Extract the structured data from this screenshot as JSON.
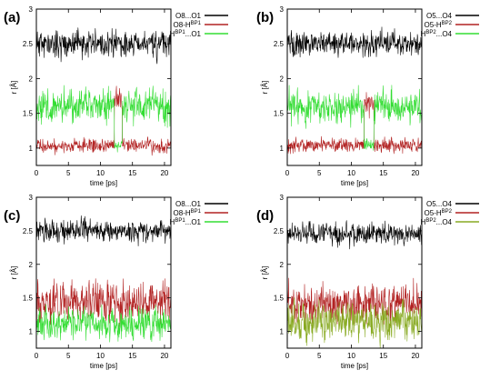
{
  "chart_data": [
    {
      "type": "line",
      "panel_label": "(a)",
      "xlabel": "time [ps]",
      "ylabel": "r [Å]",
      "xlim": [
        0,
        21
      ],
      "ylim": [
        0.75,
        3
      ],
      "xticks": [
        "0",
        "5",
        "10",
        "15",
        "20"
      ],
      "yticks": [
        "1",
        "1.5",
        "2",
        "2.5",
        "3"
      ],
      "legend_position": "top-right",
      "show_xlabel": true,
      "series": [
        {
          "name": "O8...O1",
          "color": "#000000",
          "mean": 2.5,
          "spread": 0.12,
          "seed": 11,
          "labels": {
            "main": "O8...O1",
            "sup": "",
            "tail": ""
          }
        },
        {
          "name": "O8-H^BP1",
          "color": "#b22222",
          "mean": 1.03,
          "spread": 0.06,
          "seed": 12,
          "labels": {
            "main": "O8-H",
            "sup": "BP1",
            "tail": ""
          },
          "events": [
            {
              "from": 12.2,
              "to": 13.4,
              "mean": 1.65,
              "spread": 0.12
            }
          ]
        },
        {
          "name": "H^BP1...O1",
          "color": "#33dd33",
          "mean": 1.6,
          "spread": 0.15,
          "seed": 13,
          "labels": {
            "main": "H",
            "sup": "BP1",
            "tail": "...O1"
          },
          "events": [
            {
              "from": 12.2,
              "to": 13.4,
              "mean": 1.03,
              "spread": 0.06
            }
          ]
        }
      ]
    },
    {
      "type": "line",
      "panel_label": "(b)",
      "xlabel": "time [ps]",
      "ylabel": "r [Å]",
      "xlim": [
        0,
        21
      ],
      "ylim": [
        0.75,
        3
      ],
      "xticks": [
        "0",
        "5",
        "10",
        "15",
        "20"
      ],
      "yticks": [
        "1",
        "1.5",
        "2",
        "2.5",
        "3"
      ],
      "legend_position": "top-right",
      "show_xlabel": true,
      "series": [
        {
          "name": "O5...O4",
          "color": "#000000",
          "mean": 2.5,
          "spread": 0.1,
          "seed": 21,
          "labels": {
            "main": "O5...O4",
            "sup": "",
            "tail": ""
          }
        },
        {
          "name": "O5-H^BP2",
          "color": "#b22222",
          "mean": 1.04,
          "spread": 0.06,
          "seed": 22,
          "labels": {
            "main": "O5-H",
            "sup": "BP2",
            "tail": ""
          },
          "events": [
            {
              "from": 12.0,
              "to": 13.5,
              "mean": 1.65,
              "spread": 0.12
            }
          ]
        },
        {
          "name": "H^BP2...O4",
          "color": "#33dd33",
          "mean": 1.6,
          "spread": 0.15,
          "seed": 23,
          "labels": {
            "main": "H",
            "sup": "BP2",
            "tail": "...O4"
          },
          "events": [
            {
              "from": 12.0,
              "to": 13.5,
              "mean": 1.04,
              "spread": 0.06
            }
          ]
        }
      ]
    },
    {
      "type": "line",
      "panel_label": "(c)",
      "xlabel": "time [ps]",
      "ylabel": "r [Å]",
      "xlim": [
        0,
        21
      ],
      "ylim": [
        0.75,
        3
      ],
      "xticks": [
        "0",
        "5",
        "10",
        "15",
        "20"
      ],
      "yticks": [
        "1",
        "1.5",
        "2",
        "2.5",
        "3"
      ],
      "legend_position": "top-right",
      "show_xlabel": true,
      "series": [
        {
          "name": "O8...O1",
          "color": "#000000",
          "mean": 2.5,
          "spread": 0.1,
          "seed": 31,
          "labels": {
            "main": "O8...O1",
            "sup": "",
            "tail": ""
          }
        },
        {
          "name": "O8-H^BP1",
          "color": "#b22222",
          "mean": 1.45,
          "spread": 0.18,
          "seed": 32,
          "labels": {
            "main": "O8-H",
            "sup": "BP1",
            "tail": ""
          }
        },
        {
          "name": "H^BP1...O1",
          "color": "#33dd33",
          "mean": 1.12,
          "spread": 0.14,
          "seed": 33,
          "labels": {
            "main": "H",
            "sup": "BP1",
            "tail": "...O1"
          }
        }
      ]
    },
    {
      "type": "line",
      "panel_label": "(d)",
      "xlabel": "time [ps]",
      "ylabel": "r [Å]",
      "xlim": [
        0,
        21
      ],
      "ylim": [
        0.75,
        3
      ],
      "xticks": [
        "0",
        "5",
        "10",
        "15",
        "20"
      ],
      "yticks": [
        "1",
        "1.5",
        "2",
        "2.5",
        "3"
      ],
      "legend_position": "top-right",
      "show_xlabel": true,
      "series": [
        {
          "name": "O5...O4",
          "color": "#000000",
          "mean": 2.45,
          "spread": 0.1,
          "seed": 41,
          "labels": {
            "main": "O5...O4",
            "sup": "",
            "tail": ""
          }
        },
        {
          "name": "O5-H^BP2",
          "color": "#b22222",
          "mean": 1.4,
          "spread": 0.18,
          "seed": 42,
          "labels": {
            "main": "O5-H",
            "sup": "BP2",
            "tail": ""
          }
        },
        {
          "name": "H^BP2...O4",
          "color": "#88aa22",
          "mean": 1.15,
          "spread": 0.18,
          "seed": 43,
          "labels": {
            "main": "H",
            "sup": "BP2",
            "tail": "...O4"
          }
        }
      ]
    }
  ]
}
